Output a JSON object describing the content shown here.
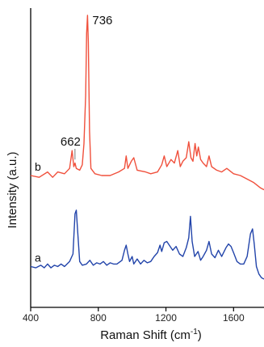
{
  "chart_data": {
    "type": "line",
    "title": "",
    "xlabel": "Raman Shift (cm",
    "xlabel_sup": "-1",
    "xlabel_close": ")",
    "ylabel": "Intensity (a.u.)",
    "xlim": [
      400,
      1780
    ],
    "xticks": [
      {
        "value": 400,
        "label": "400"
      },
      {
        "value": 800,
        "label": "800"
      },
      {
        "value": 1200,
        "label": "1200"
      },
      {
        "value": 1600,
        "label": "1600"
      }
    ],
    "y_ticks_shown": false,
    "annotations": [
      {
        "text": "736",
        "x": 736,
        "series": "b"
      },
      {
        "text": "662",
        "x": 662,
        "series": "b"
      }
    ],
    "series": [
      {
        "name": "b",
        "color": "#f0503c",
        "points": [
          [
            400,
            0.1
          ],
          [
            450,
            0.09
          ],
          [
            500,
            0.12
          ],
          [
            530,
            0.09
          ],
          [
            560,
            0.12
          ],
          [
            600,
            0.11
          ],
          [
            630,
            0.14
          ],
          [
            645,
            0.24
          ],
          [
            655,
            0.15
          ],
          [
            662,
            0.17
          ],
          [
            670,
            0.14
          ],
          [
            690,
            0.13
          ],
          [
            705,
            0.16
          ],
          [
            715,
            0.28
          ],
          [
            725,
            0.55
          ],
          [
            731,
            0.9
          ],
          [
            736,
            1.0
          ],
          [
            741,
            0.85
          ],
          [
            748,
            0.35
          ],
          [
            756,
            0.14
          ],
          [
            780,
            0.11
          ],
          [
            820,
            0.1
          ],
          [
            870,
            0.1
          ],
          [
            920,
            0.12
          ],
          [
            955,
            0.14
          ],
          [
            965,
            0.21
          ],
          [
            975,
            0.14
          ],
          [
            995,
            0.18
          ],
          [
            1010,
            0.2
          ],
          [
            1030,
            0.13
          ],
          [
            1080,
            0.12
          ],
          [
            1110,
            0.11
          ],
          [
            1150,
            0.12
          ],
          [
            1175,
            0.16
          ],
          [
            1190,
            0.21
          ],
          [
            1205,
            0.15
          ],
          [
            1230,
            0.19
          ],
          [
            1250,
            0.17
          ],
          [
            1270,
            0.24
          ],
          [
            1285,
            0.15
          ],
          [
            1300,
            0.18
          ],
          [
            1320,
            0.2
          ],
          [
            1335,
            0.29
          ],
          [
            1348,
            0.2
          ],
          [
            1360,
            0.18
          ],
          [
            1372,
            0.28
          ],
          [
            1382,
            0.21
          ],
          [
            1392,
            0.26
          ],
          [
            1405,
            0.19
          ],
          [
            1420,
            0.17
          ],
          [
            1440,
            0.15
          ],
          [
            1455,
            0.21
          ],
          [
            1470,
            0.15
          ],
          [
            1500,
            0.13
          ],
          [
            1530,
            0.12
          ],
          [
            1560,
            0.14
          ],
          [
            1600,
            0.11
          ],
          [
            1640,
            0.1
          ],
          [
            1680,
            0.08
          ],
          [
            1720,
            0.06
          ],
          [
            1760,
            0.03
          ],
          [
            1780,
            0.02
          ]
        ]
      },
      {
        "name": "a",
        "color": "#2244aa",
        "points": [
          [
            400,
            0.1
          ],
          [
            430,
            0.09
          ],
          [
            460,
            0.11
          ],
          [
            480,
            0.09
          ],
          [
            500,
            0.12
          ],
          [
            520,
            0.09
          ],
          [
            540,
            0.11
          ],
          [
            560,
            0.1
          ],
          [
            580,
            0.12
          ],
          [
            600,
            0.1
          ],
          [
            630,
            0.14
          ],
          [
            650,
            0.2
          ],
          [
            662,
            0.52
          ],
          [
            670,
            0.55
          ],
          [
            678,
            0.38
          ],
          [
            690,
            0.14
          ],
          [
            705,
            0.11
          ],
          [
            730,
            0.12
          ],
          [
            750,
            0.15
          ],
          [
            770,
            0.11
          ],
          [
            790,
            0.13
          ],
          [
            810,
            0.12
          ],
          [
            830,
            0.14
          ],
          [
            850,
            0.11
          ],
          [
            870,
            0.13
          ],
          [
            890,
            0.12
          ],
          [
            910,
            0.12
          ],
          [
            940,
            0.15
          ],
          [
            955,
            0.23
          ],
          [
            965,
            0.27
          ],
          [
            975,
            0.2
          ],
          [
            985,
            0.14
          ],
          [
            1000,
            0.18
          ],
          [
            1010,
            0.12
          ],
          [
            1030,
            0.16
          ],
          [
            1050,
            0.12
          ],
          [
            1070,
            0.15
          ],
          [
            1090,
            0.13
          ],
          [
            1110,
            0.14
          ],
          [
            1130,
            0.18
          ],
          [
            1150,
            0.21
          ],
          [
            1165,
            0.27
          ],
          [
            1175,
            0.22
          ],
          [
            1190,
            0.29
          ],
          [
            1205,
            0.3
          ],
          [
            1220,
            0.27
          ],
          [
            1240,
            0.23
          ],
          [
            1260,
            0.26
          ],
          [
            1280,
            0.2
          ],
          [
            1300,
            0.18
          ],
          [
            1320,
            0.25
          ],
          [
            1335,
            0.33
          ],
          [
            1345,
            0.5
          ],
          [
            1355,
            0.3
          ],
          [
            1370,
            0.18
          ],
          [
            1390,
            0.22
          ],
          [
            1405,
            0.15
          ],
          [
            1420,
            0.18
          ],
          [
            1440,
            0.23
          ],
          [
            1455,
            0.3
          ],
          [
            1470,
            0.2
          ],
          [
            1490,
            0.17
          ],
          [
            1510,
            0.23
          ],
          [
            1530,
            0.18
          ],
          [
            1555,
            0.25
          ],
          [
            1570,
            0.28
          ],
          [
            1585,
            0.26
          ],
          [
            1600,
            0.21
          ],
          [
            1620,
            0.14
          ],
          [
            1640,
            0.12
          ],
          [
            1660,
            0.12
          ],
          [
            1680,
            0.18
          ],
          [
            1700,
            0.36
          ],
          [
            1712,
            0.4
          ],
          [
            1722,
            0.28
          ],
          [
            1735,
            0.1
          ],
          [
            1750,
            0.04
          ],
          [
            1765,
            0.01
          ],
          [
            1780,
            0.0
          ]
        ]
      }
    ]
  }
}
